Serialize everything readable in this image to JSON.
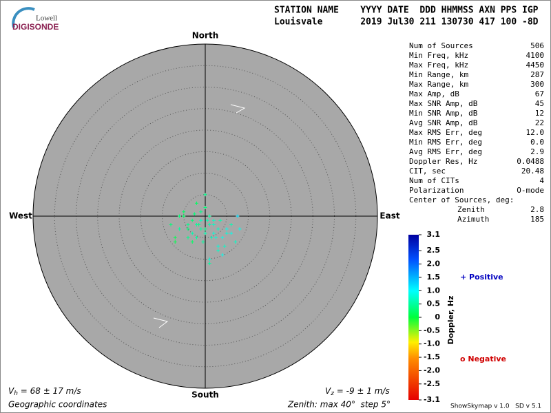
{
  "logo": {
    "top": "Lowell",
    "bottom": "DIGISONDE"
  },
  "header": {
    "columns": "STATION NAME    YYYY DATE  DDD HHMMSS AXN PPS IGP",
    "values": "Louisvale       2019 Jul30 211 130730 417 100 -8D"
  },
  "stats": [
    {
      "label": "Num of Sources",
      "value": "506"
    },
    {
      "label": "Min Freq, kHz",
      "value": "4100"
    },
    {
      "label": "Max Freq, kHz",
      "value": "4450"
    },
    {
      "label": "Min Range, km",
      "value": "287"
    },
    {
      "label": "Max Range, km",
      "value": "300"
    },
    {
      "label": "Max Amp, dB",
      "value": "67"
    },
    {
      "label": "Max SNR Amp, dB",
      "value": "45"
    },
    {
      "label": "Min SNR Amp, dB",
      "value": "12"
    },
    {
      "label": "Avg SNR Amp, dB",
      "value": "22"
    },
    {
      "label": "Max RMS Err, deg",
      "value": "12.0"
    },
    {
      "label": "Min RMS Err, deg",
      "value": "0.0"
    },
    {
      "label": "Avg RMS Err, deg",
      "value": "2.9"
    },
    {
      "label": "Doppler Res, Hz",
      "value": "0.0488"
    },
    {
      "label": "CIT, sec",
      "value": "20.48"
    },
    {
      "label": "Num of CITs",
      "value": "4"
    },
    {
      "label": "Polarization",
      "value": "O-mode"
    }
  ],
  "center": {
    "title": "Center of Sources, deg:",
    "rows": [
      {
        "label": "Zenith",
        "value": "2.8"
      },
      {
        "label": "Azimuth",
        "value": "185"
      }
    ]
  },
  "skymap": {
    "type": "scatter",
    "directions": {
      "north": "North",
      "south": "South",
      "west": "West",
      "east": "East"
    },
    "zlim": [
      0,
      40
    ],
    "ring_step": 5,
    "x": [
      -2,
      -1,
      0,
      1,
      2,
      -3,
      -4,
      -5,
      -6,
      -7,
      -8,
      3,
      4,
      5,
      6,
      7,
      -1,
      0,
      1,
      -2,
      -3,
      2,
      3,
      4,
      -4,
      -5,
      -1,
      0,
      2,
      5,
      -6,
      -3,
      0,
      1,
      3,
      6,
      -2,
      -4,
      0.5,
      1.5,
      -0.5,
      7.5,
      -1.5,
      2.5,
      -2.5,
      3.5,
      8,
      -7,
      4.5,
      1
    ],
    "y": [
      -2,
      -1,
      -3,
      -2,
      -4,
      -1,
      -2,
      0,
      -3,
      -6,
      -2,
      -3,
      -5,
      -4,
      -2,
      -6,
      1,
      2,
      0,
      3,
      -4,
      -1,
      -7,
      -9,
      -5,
      1,
      -3,
      -4,
      -2,
      -3,
      0,
      -6,
      5,
      -10,
      -8,
      -4,
      -5,
      -3,
      -1,
      -5,
      -6,
      0,
      -2,
      -5,
      0.5,
      -1,
      -3,
      -5,
      -7,
      -11
    ],
    "doppler": [
      0.5,
      0.7,
      0.4,
      0.6,
      0.8,
      0.3,
      0.4,
      0.2,
      0.5,
      0.1,
      0.3,
      0.7,
      0.9,
      0.8,
      0.6,
      0.7,
      0.4,
      0.3,
      0.5,
      0.2,
      0.6,
      0.7,
      0.8,
      0.9,
      0.4,
      0.2,
      0.5,
      0.6,
      0.7,
      0.9,
      0.3,
      0.2,
      0.4,
      0.8,
      0.7,
      0.9,
      0.5,
      0.3,
      0.6,
      0.7,
      0.5,
      1.2,
      0.4,
      0.8,
      0.3,
      0.6,
      0.9,
      0.1,
      0.7,
      0.5
    ]
  },
  "colorbar": {
    "label": "Doppler, Hz",
    "lim": [
      -3.1,
      3.1
    ],
    "ticks": [
      3.1,
      2.5,
      {
        "value": 2,
        "label": "2.0"
      },
      1.5,
      {
        "value": 1,
        "label": "1.0"
      },
      0.5,
      0,
      -0.5,
      {
        "value": -1,
        "label": "-1.0"
      },
      -1.5,
      {
        "value": -2,
        "label": "-2.0"
      },
      -2.5,
      -3.1
    ]
  },
  "legend": {
    "positive": "+ Positive",
    "negative": "o Negative"
  },
  "footer": {
    "vh": {
      "symbol": "V",
      "sub": "h",
      "text": " = 68 ± 17 m/s"
    },
    "vz": {
      "symbol": "V",
      "sub": "z",
      "text": " = -9 ± 1 m/s"
    },
    "coords": "Geographic coordinates",
    "zenith": "Zenith: max 40°  step 5°",
    "version": "ShowSkymap v 1.0   SD v 5.1"
  }
}
